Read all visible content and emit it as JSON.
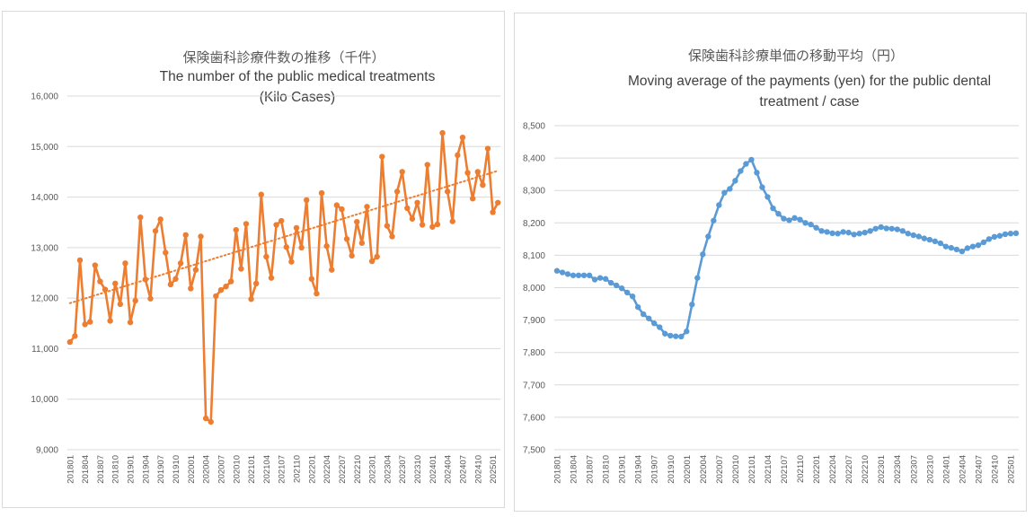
{
  "chart_data": [
    {
      "type": "line",
      "title": "保険歯科診療件数の推移（千件）",
      "subtitle_lines": [
        "The number of the public medical treatments",
        "(Kilo Cases)"
      ],
      "xlabel": "",
      "ylabel": "",
      "ylim": [
        9000,
        16000
      ],
      "yticks": [
        9000,
        10000,
        11000,
        12000,
        13000,
        14000,
        15000,
        16000
      ],
      "ytick_labels": [
        "9,000",
        "10,000",
        "11,000",
        "12,000",
        "13,000",
        "14,000",
        "15,000",
        "16,000"
      ],
      "x_start": "201801",
      "x_tick_labels": [
        "201801",
        "201804",
        "201807",
        "201810",
        "201901",
        "201904",
        "201907",
        "201910",
        "202001",
        "202004",
        "202007",
        "202010",
        "202101",
        "202104",
        "202107",
        "202110",
        "202201",
        "202204",
        "202207",
        "202210",
        "202301",
        "202304",
        "202307",
        "202310",
        "202401",
        "202404",
        "202407",
        "202410",
        "202501"
      ],
      "grid": true,
      "series": [
        {
          "color": "#ed7d31",
          "marker": "circle",
          "values": [
            11130,
            11250,
            12750,
            11480,
            11530,
            12650,
            12330,
            12170,
            11550,
            12290,
            11880,
            12690,
            11520,
            11950,
            13600,
            12370,
            11990,
            13330,
            13560,
            12900,
            12270,
            12380,
            12690,
            13250,
            12190,
            12560,
            13220,
            9620,
            9550,
            12040,
            12160,
            12230,
            12330,
            13350,
            12580,
            13470,
            11980,
            12290,
            14050,
            12820,
            12400,
            13450,
            13530,
            13010,
            12720,
            13390,
            13000,
            13940,
            12380,
            12090,
            14080,
            13030,
            12560,
            13840,
            13760,
            13170,
            12840,
            13510,
            13090,
            13810,
            12730,
            12820,
            14800,
            13430,
            13220,
            14110,
            14500,
            13780,
            13570,
            13890,
            13450,
            14640,
            13410,
            13460,
            15270,
            14110,
            13520,
            14830,
            15180,
            14480,
            13970,
            14500,
            14240,
            14960,
            13700,
            13890
          ]
        }
      ],
      "trendline": {
        "color": "#ed7d31",
        "style": "dotted",
        "start_value": 11900,
        "end_value": 14520
      }
    },
    {
      "type": "line",
      "title": "保険歯科診療単価の移動平均（円）",
      "subtitle_lines": [
        "Moving average of the payments (yen) for the public dental",
        "treatment / case"
      ],
      "xlabel": "",
      "ylabel": "",
      "ylim": [
        7500,
        8500
      ],
      "yticks": [
        7500,
        7600,
        7700,
        7800,
        7900,
        8000,
        8100,
        8200,
        8300,
        8400,
        8500
      ],
      "ytick_labels": [
        "7,500",
        "7,600",
        "7,700",
        "7,800",
        "7,900",
        "8,000",
        "8,100",
        "8,200",
        "8,300",
        "8,400",
        "8,500"
      ],
      "x_start": "201801",
      "x_tick_labels": [
        "201801",
        "201804",
        "201807",
        "201810",
        "201901",
        "201904",
        "201907",
        "201910",
        "202001",
        "202004",
        "202007",
        "202010",
        "202101",
        "202104",
        "202107",
        "202110",
        "202201",
        "202204",
        "202207",
        "202210",
        "202301",
        "202304",
        "202307",
        "202310",
        "202401",
        "202404",
        "202407",
        "202410",
        "202501"
      ],
      "grid": true,
      "series": [
        {
          "color": "#5b9bd5",
          "marker": "circle",
          "values": [
            8052,
            8047,
            8042,
            8038,
            8038,
            8038,
            8038,
            8025,
            8030,
            8027,
            8015,
            8007,
            7998,
            7985,
            7973,
            7940,
            7918,
            7905,
            7890,
            7878,
            7858,
            7852,
            7850,
            7849,
            7865,
            7948,
            8030,
            8103,
            8158,
            8207,
            8255,
            8293,
            8305,
            8330,
            8360,
            8382,
            8395,
            8355,
            8310,
            8280,
            8245,
            8228,
            8213,
            8208,
            8215,
            8210,
            8200,
            8195,
            8185,
            8175,
            8172,
            8168,
            8167,
            8172,
            8170,
            8164,
            8167,
            8170,
            8175,
            8182,
            8187,
            8183,
            8182,
            8180,
            8175,
            8167,
            8162,
            8158,
            8152,
            8148,
            8143,
            8137,
            8127,
            8123,
            8118,
            8112,
            8122,
            8127,
            8131,
            8140,
            8150,
            8157,
            8160,
            8165,
            8167,
            8168
          ]
        }
      ]
    }
  ]
}
